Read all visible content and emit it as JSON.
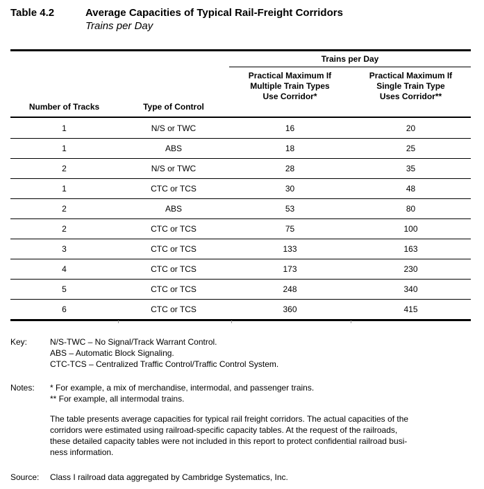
{
  "title": {
    "label": "Table 4.2",
    "heading": "Average Capacities of Typical Rail-Freight Corridors",
    "subheading": "Trains per Day"
  },
  "table": {
    "span_header": "Trains per Day",
    "columns": {
      "col1": "Number of Tracks",
      "col2": "Type of Control",
      "col3": "Practical Maximum If\nMultiple Train Types\nUse Corridor*",
      "col4": "Practical Maximum If\nSingle Train Type\nUses Corridor**"
    },
    "rows": [
      [
        "1",
        "N/S or TWC",
        "16",
        "20"
      ],
      [
        "1",
        "ABS",
        "18",
        "25"
      ],
      [
        "2",
        "N/S or TWC",
        "28",
        "35"
      ],
      [
        "1",
        "CTC or TCS",
        "30",
        "48"
      ],
      [
        "2",
        "ABS",
        "53",
        "80"
      ],
      [
        "2",
        "CTC or TCS",
        "75",
        "100"
      ],
      [
        "3",
        "CTC or TCS",
        "133",
        "163"
      ],
      [
        "4",
        "CTC or TCS",
        "173",
        "230"
      ],
      [
        "5",
        "CTC or TCS",
        "248",
        "340"
      ],
      [
        "6",
        "CTC or TCS",
        "360",
        "415"
      ]
    ]
  },
  "key": {
    "label": "Key:",
    "items": [
      "N/S-TWC – No Signal/Track Warrant Control.",
      "ABS – Automatic Block Signaling.",
      "CTC-TCS – Centralized Traffic Control/Traffic Control System."
    ]
  },
  "notes": {
    "label": "Notes:",
    "items": [
      "* For example, a mix of merchandise, intermodal, and passenger trains.",
      "** For example, all intermodal trains."
    ],
    "paragraph": "The table presents average capacities for typical rail freight corridors.  The actual capacities of the\ncorridors were estimated using railroad-specific capacity tables.  At the request of the railroads,\nthese detailed capacity tables were not included in this report to protect confidential railroad busi-\nness information."
  },
  "source": {
    "label": "Source:",
    "text": "Class I railroad data aggregated by Cambridge Systematics, Inc."
  },
  "colors": {
    "text": "#000000",
    "background": "#ffffff",
    "rule": "#000000"
  }
}
